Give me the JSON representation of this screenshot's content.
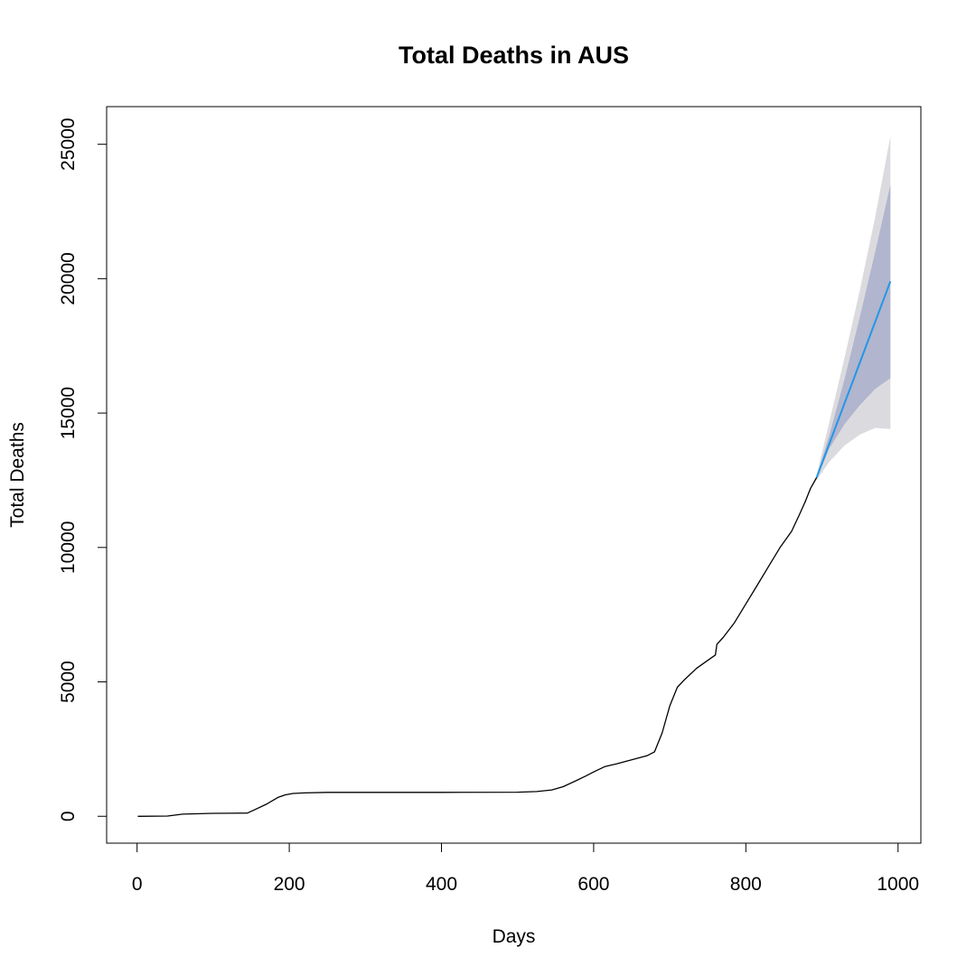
{
  "chart_data": {
    "type": "line",
    "title": "Total Deaths in AUS",
    "xlabel": "Days",
    "ylabel": "Total Deaths",
    "xlim": [
      -40,
      1030
    ],
    "ylim": [
      -1000,
      26400
    ],
    "grid": false,
    "legend": "none",
    "x_ticks": [
      0,
      200,
      400,
      600,
      800,
      1000
    ],
    "x_tick_labels": [
      "0",
      "200",
      "400",
      "600",
      "800",
      "1000"
    ],
    "y_ticks": [
      0,
      5000,
      10000,
      15000,
      20000,
      25000
    ],
    "y_tick_labels": [
      "0",
      "5000",
      "10000",
      "15000",
      "20000",
      "25000"
    ],
    "colors": {
      "history_line": "#000000",
      "forecast_line": "#2297e6",
      "band_80": "#b1b5ce",
      "band_95": "#dbdbdf"
    },
    "series": [
      {
        "x": [
          1,
          40,
          60,
          100,
          145,
          155,
          170,
          185,
          195,
          205,
          220,
          250,
          300,
          400,
          500,
          525,
          545,
          560,
          575,
          590,
          600,
          615,
          630,
          650,
          670,
          680,
          690,
          700,
          710,
          720,
          735,
          750,
          760,
          762,
          770,
          785,
          800,
          815,
          830,
          845,
          860,
          870,
          878,
          885,
          893
        ],
        "y": [
          0,
          10,
          80,
          110,
          120,
          250,
          450,
          700,
          800,
          850,
          870,
          890,
          890,
          890,
          895,
          920,
          980,
          1100,
          1300,
          1500,
          1650,
          1850,
          1950,
          2100,
          2250,
          2400,
          3100,
          4100,
          4800,
          5100,
          5500,
          5800,
          6000,
          6400,
          6650,
          7200,
          7900,
          8600,
          9300,
          10000,
          10600,
          11200,
          11700,
          12200,
          12600
        ]
      },
      {
        "x": [
          893,
          990
        ],
        "y": [
          12600,
          19900
        ]
      }
    ],
    "forecast_bands": [
      {
        "level": "95",
        "x": [
          893,
          910,
          930,
          950,
          970,
          990
        ],
        "upper": [
          12700,
          14700,
          17100,
          19600,
          22300,
          25300
        ],
        "lower": [
          12500,
          13200,
          13800,
          14200,
          14450,
          14400
        ]
      },
      {
        "level": "80",
        "x": [
          893,
          910,
          930,
          950,
          970,
          990
        ],
        "upper": [
          12650,
          14200,
          16300,
          18600,
          21000,
          23500
        ],
        "lower": [
          12550,
          13700,
          14600,
          15300,
          15900,
          16300
        ]
      }
    ]
  }
}
